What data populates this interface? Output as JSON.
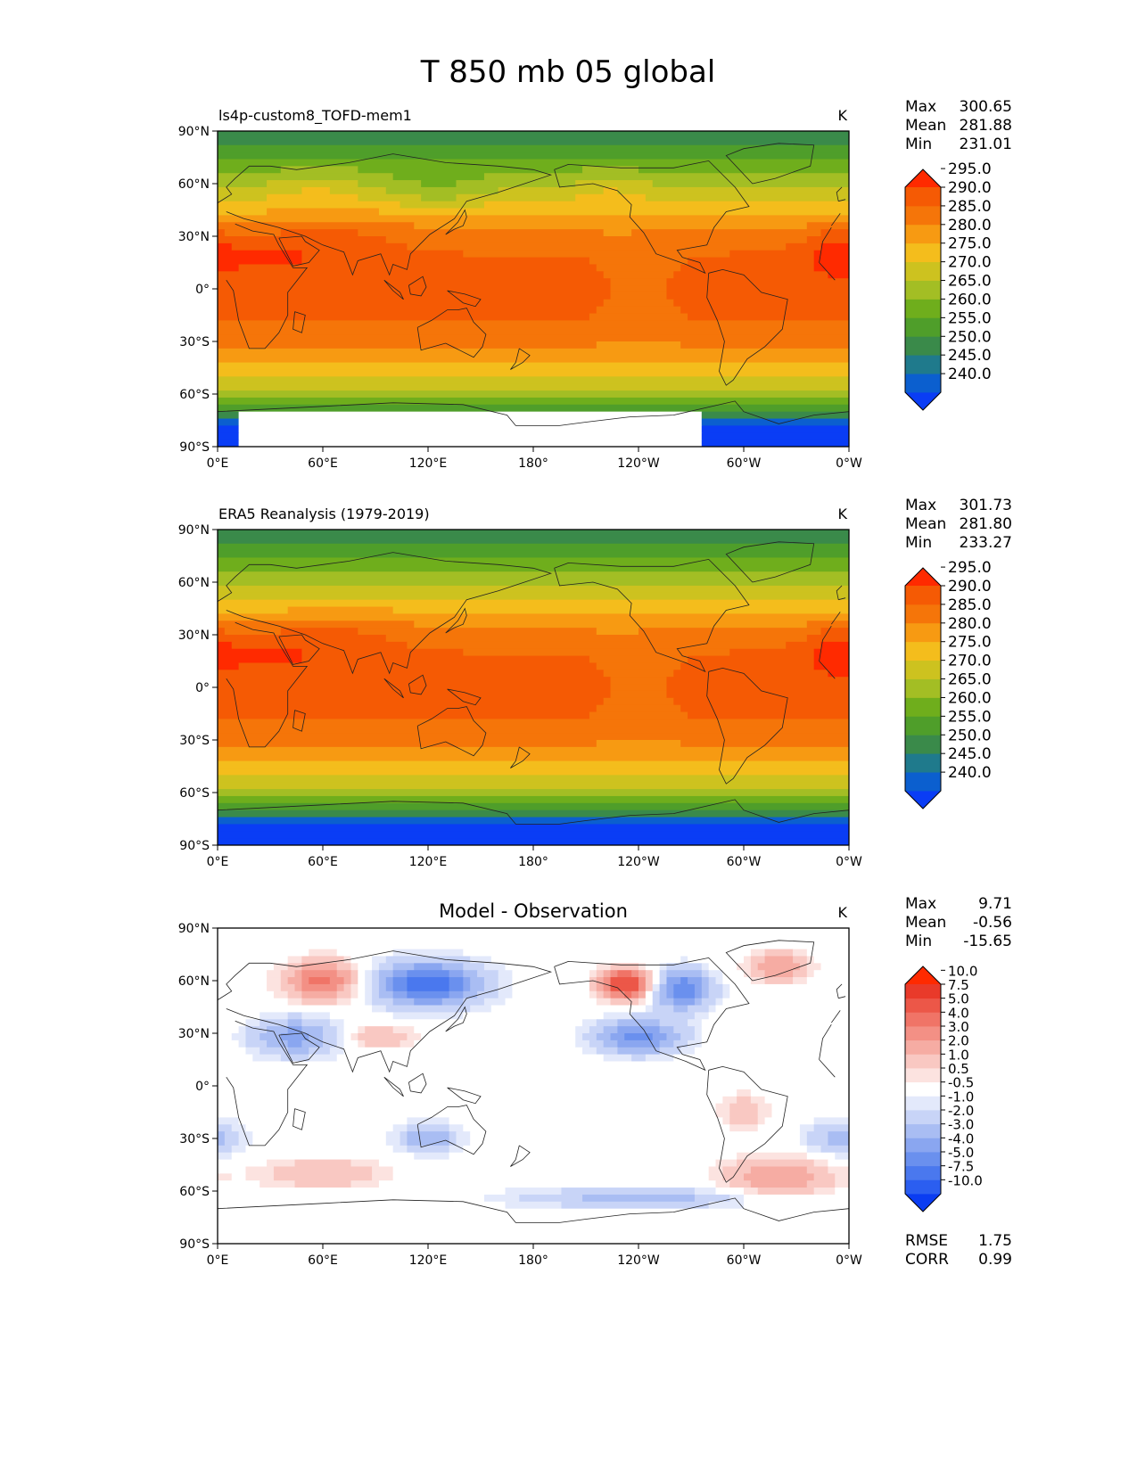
{
  "figure_title": "T 850 mb 05 global",
  "chart_data": [
    {
      "type": "heatmap",
      "panel": "model",
      "title": "ls4p-custom8_TOFD-mem1",
      "units": "K",
      "projection": "cylindrical equidistant",
      "stats": {
        "labels": [
          "Max",
          "Mean",
          "Min"
        ],
        "values": [
          "300.65",
          "281.88",
          "231.01"
        ]
      },
      "x_ticks": [
        "0°E",
        "60°E",
        "120°E",
        "180°",
        "120°W",
        "60°W",
        "0°W"
      ],
      "y_ticks": [
        "90°N",
        "60°N",
        "30°N",
        "0°",
        "30°S",
        "60°S",
        "90°S"
      ],
      "xlim": [
        0,
        360
      ],
      "ylim": [
        -90,
        90
      ],
      "colorbar": {
        "levels": [
          "240.0",
          "245.0",
          "250.0",
          "255.0",
          "260.0",
          "265.0",
          "270.0",
          "275.0",
          "280.0",
          "285.0",
          "290.0",
          "295.0"
        ],
        "colors": [
          "#0a3df5",
          "#0b5fcf",
          "#1f7a8c",
          "#3a8a4a",
          "#4f9e2a",
          "#6fae1c",
          "#a3be24",
          "#cdc21f",
          "#f4bd1c",
          "#f79a12",
          "#f57509",
          "#f55a04",
          "#ff2a00"
        ],
        "extend": "both"
      },
      "field": "t_model"
    },
    {
      "type": "heatmap",
      "panel": "observation",
      "title": "ERA5 Reanalysis (1979-2019)",
      "units": "K",
      "projection": "cylindrical equidistant",
      "stats": {
        "labels": [
          "Max",
          "Mean",
          "Min"
        ],
        "values": [
          "301.73",
          "281.80",
          "233.27"
        ]
      },
      "x_ticks": [
        "0°E",
        "60°E",
        "120°E",
        "180°",
        "120°W",
        "60°W",
        "0°W"
      ],
      "y_ticks": [
        "90°N",
        "60°N",
        "30°N",
        "0°",
        "30°S",
        "60°S",
        "90°S"
      ],
      "xlim": [
        0,
        360
      ],
      "ylim": [
        -90,
        90
      ],
      "colorbar": {
        "levels": [
          "240.0",
          "245.0",
          "250.0",
          "255.0",
          "260.0",
          "265.0",
          "270.0",
          "275.0",
          "280.0",
          "285.0",
          "290.0",
          "295.0"
        ],
        "colors": [
          "#0a3df5",
          "#0b5fcf",
          "#1f7a8c",
          "#3a8a4a",
          "#4f9e2a",
          "#6fae1c",
          "#a3be24",
          "#cdc21f",
          "#f4bd1c",
          "#f79a12",
          "#f57509",
          "#f55a04",
          "#ff2a00"
        ],
        "extend": "both"
      },
      "field": "t_obs"
    },
    {
      "type": "heatmap",
      "panel": "difference",
      "title": "Model - Observation",
      "units": "K",
      "projection": "cylindrical equidistant",
      "stats": {
        "labels": [
          "Max",
          "Mean",
          "Min"
        ],
        "values": [
          "9.71",
          "-0.56",
          "-15.65"
        ]
      },
      "metrics": {
        "labels": [
          "RMSE",
          "CORR"
        ],
        "values": [
          "1.75",
          "0.99"
        ]
      },
      "x_ticks": [
        "0°E",
        "60°E",
        "120°E",
        "180°",
        "120°W",
        "60°W",
        "0°W"
      ],
      "y_ticks": [
        "90°N",
        "60°N",
        "30°N",
        "0°",
        "30°S",
        "60°S",
        "90°S"
      ],
      "xlim": [
        0,
        360
      ],
      "ylim": [
        -90,
        90
      ],
      "colorbar": {
        "levels": [
          "-10.0",
          "-7.5",
          "-5.0",
          "-4.0",
          "-3.0",
          "-2.0",
          "-1.0",
          "-0.5",
          "0.5",
          "1.0",
          "2.0",
          "3.0",
          "4.0",
          "5.0",
          "7.5",
          "10.0"
        ],
        "colors": [
          "#0a3cf2",
          "#2b5ef0",
          "#4a78ee",
          "#6a90ee",
          "#8aa6f0",
          "#a9bdf3",
          "#c8d4f7",
          "#e3e9fb",
          "#ffffff",
          "#fce3e0",
          "#f9c8c2",
          "#f6aca3",
          "#f39085",
          "#f07467",
          "#ec5748",
          "#e93a2a",
          "#ff2a00"
        ],
        "extend": "both"
      },
      "field": "t_diff"
    }
  ]
}
